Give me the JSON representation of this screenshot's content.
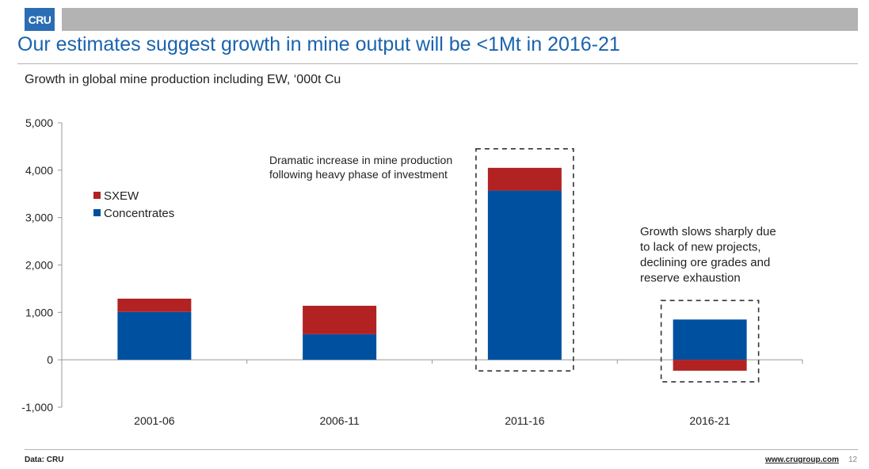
{
  "header": {
    "logo_text": "CRU",
    "title": "Our estimates suggest growth in mine output will be <1Mt in 2016-21"
  },
  "footer": {
    "source": "Data: CRU",
    "website": "www.crugroup.com",
    "page_number": "12"
  },
  "colors": {
    "concentrates": "#0050a0",
    "sxew": "#b22222",
    "accent": "#1a63ae"
  },
  "chart_data": {
    "type": "bar",
    "stacked": true,
    "title": "Growth in global mine production including EW, ‘000t Cu",
    "xlabel": "",
    "ylabel": "",
    "categories": [
      "2001-06",
      "2006-11",
      "2011-16",
      "2016-21"
    ],
    "series": [
      {
        "name": "Concentrates",
        "values": [
          1010,
          540,
          3570,
          850
        ]
      },
      {
        "name": "SXEW",
        "values": [
          280,
          600,
          480,
          -230
        ]
      }
    ],
    "ylim": [
      -1000,
      5000
    ],
    "yticks": [
      -1000,
      0,
      1000,
      2000,
      3000,
      4000,
      5000
    ],
    "ytick_labels": [
      "-1,000",
      "0",
      "1,000",
      "2,000",
      "3,000",
      "4,000",
      "5,000"
    ],
    "legend_position": "upper-left",
    "legend_order": [
      "SXEW",
      "Concentrates"
    ],
    "annotations": [
      {
        "text_lines": [
          "Dramatic increase in mine production",
          "following heavy phase of investment"
        ]
      },
      {
        "text_lines": [
          "Growth slows sharply due",
          "to lack of new projects,",
          "declining ore grades and",
          "reserve exhaustion"
        ]
      }
    ],
    "grid": false
  }
}
